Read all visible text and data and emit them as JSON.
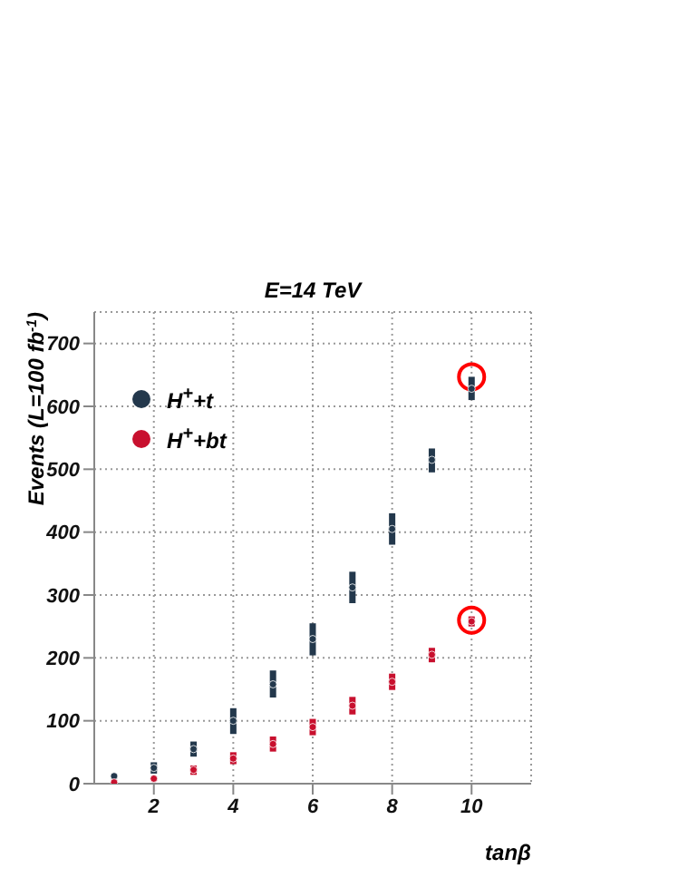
{
  "chart_data": {
    "type": "scatter",
    "title": "E=14 TeV",
    "xlabel": "tanβ",
    "ylabel": "Events (L=100 fb$^{-1}$)",
    "xlim": [
      0.5,
      11.5
    ],
    "xticks": [
      2,
      4,
      6,
      8,
      10
    ],
    "ylim": [
      0,
      750
    ],
    "yticks": [
      0,
      100,
      200,
      300,
      400,
      500,
      600,
      700
    ],
    "grid": true,
    "legend": "top left",
    "marker": "circle",
    "series": [
      {
        "color": "#ff0000",
        "x": [
          10,
          10
        ],
        "values": [
          647,
          260
        ]
      },
      {
        "name": "H$^{+}$+t",
        "color": "#23384c",
        "x": [
          1,
          2,
          3,
          4,
          5,
          6,
          7,
          8,
          9,
          10
        ],
        "values": [
          12,
          25,
          55,
          100,
          158,
          230,
          312,
          405,
          515,
          628
        ],
        "errors": [
          null,
          [
            16,
            34
          ],
          [
            43,
            67
          ],
          [
            79,
            120
          ],
          [
            137,
            180
          ],
          [
            204,
            255
          ],
          [
            287,
            337
          ],
          [
            380,
            430
          ],
          [
            495,
            533
          ],
          [
            610,
            647
          ]
        ]
      },
      {
        "name": "H$^{+}$+bt",
        "color": "#c8102e",
        "x": [
          1,
          2,
          3,
          4,
          5,
          6,
          7,
          8,
          9,
          10
        ],
        "values": [
          2,
          8,
          22,
          40,
          63,
          90,
          124,
          162,
          205,
          258
        ],
        "errors": [
          null,
          null,
          [
            14,
            29
          ],
          [
            31,
            50
          ],
          [
            51,
            75
          ],
          [
            77,
            103
          ],
          [
            110,
            138
          ],
          [
            149,
            175
          ],
          [
            193,
            216
          ],
          [
            250,
            266
          ]
        ]
      }
    ]
  }
}
